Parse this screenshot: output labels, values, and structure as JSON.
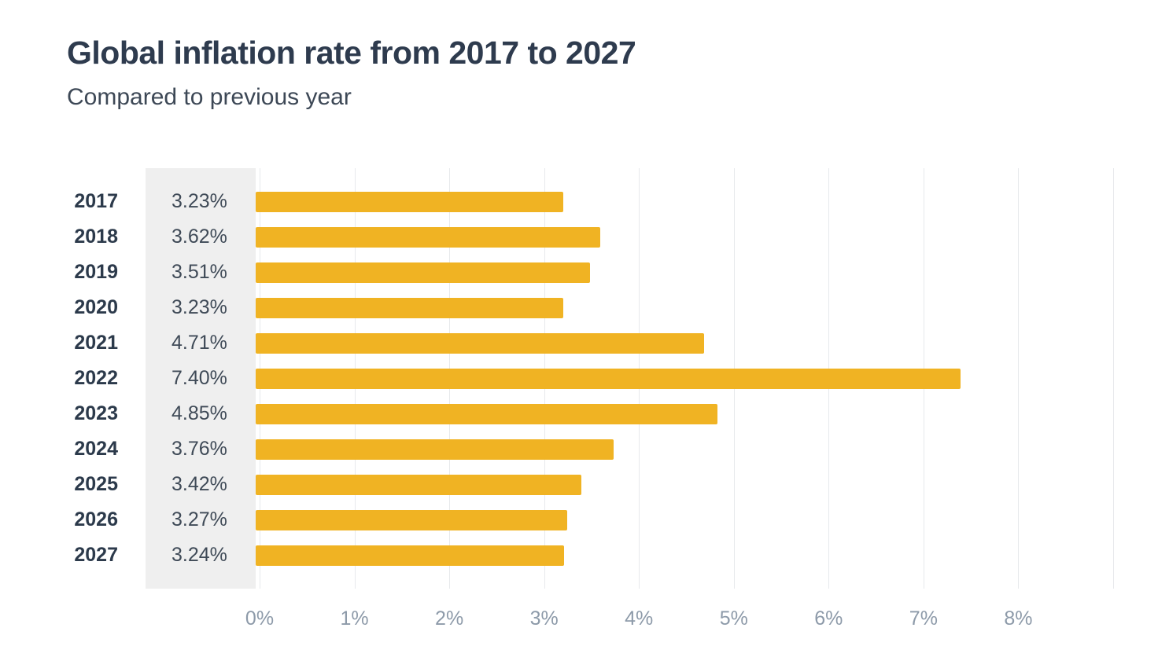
{
  "header": {
    "title": "Global inflation rate from 2017 to 2027",
    "subtitle": "Compared to previous year"
  },
  "chart_data": {
    "type": "bar",
    "orientation": "horizontal",
    "title": "Global inflation rate from 2017 to 2027",
    "subtitle": "Compared to previous year",
    "categories": [
      "2017",
      "2018",
      "2019",
      "2020",
      "2021",
      "2022",
      "2023",
      "2024",
      "2025",
      "2026",
      "2027"
    ],
    "values": [
      3.23,
      3.62,
      3.51,
      3.23,
      4.71,
      7.4,
      4.85,
      3.76,
      3.42,
      3.27,
      3.24
    ],
    "value_labels": [
      "3.23%",
      "3.62%",
      "3.51%",
      "3.23%",
      "4.71%",
      "7.40%",
      "4.85%",
      "3.76%",
      "3.42%",
      "3.27%",
      "3.24%"
    ],
    "x_ticks": [
      "0%",
      "1%",
      "2%",
      "3%",
      "4%",
      "5%",
      "6%",
      "7%",
      "8%"
    ],
    "xlim": [
      0,
      9
    ],
    "xlabel": "",
    "ylabel": "",
    "grid": "vertical",
    "legend": "none",
    "bar_color": "#F0B323",
    "panel_color": "#EFEFEF",
    "gridline_color": "#E7E9EC"
  }
}
